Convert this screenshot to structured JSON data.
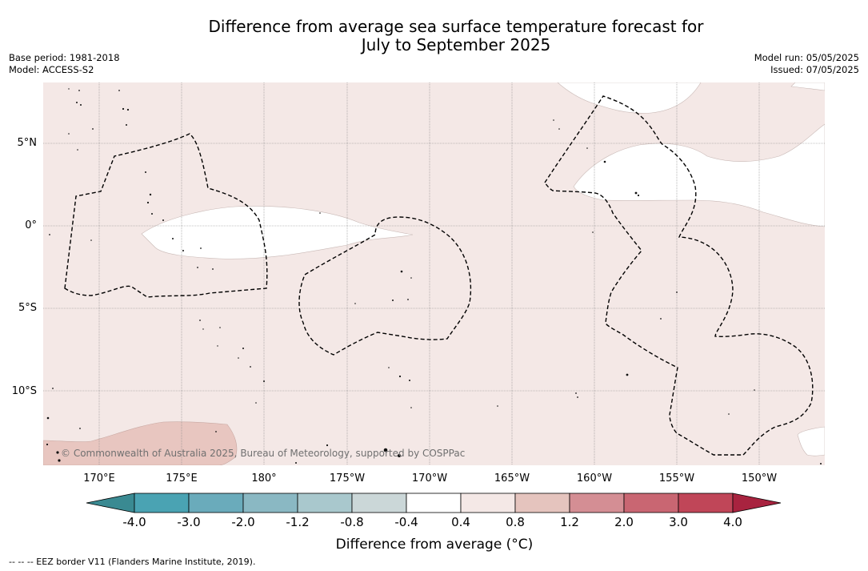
{
  "title_line1": "Difference from average sea surface temperature forecast for",
  "title_line2": "July to September 2025",
  "meta_left": {
    "base_period": "Base period: 1981-2018",
    "model": "Model: ACCESS-S2"
  },
  "meta_right": {
    "model_run": "Model run: 05/05/2025",
    "issued": "Issued: 07/05/2025"
  },
  "map": {
    "lat_labels": [
      "5°N",
      "0°",
      "5°S",
      "10°S"
    ],
    "lon_labels": [
      "170°E",
      "175°E",
      "180°",
      "175°W",
      "170°W",
      "165°W",
      "160°W",
      "155°W",
      "150°W"
    ],
    "background_color": "#f4e8e6",
    "neutral_color": "#ffffff",
    "warm_color": "#e8c6c0",
    "copyright": "© Commonwealth of Australia 2025, Bureau of Meteorology, supported by COSPPac"
  },
  "colorbar": {
    "ticks": [
      "-4.0",
      "-3.0",
      "-2.0",
      "-1.2",
      "-0.8",
      "-0.4",
      "0.4",
      "0.8",
      "1.2",
      "2.0",
      "3.0",
      "4.0"
    ],
    "colors": [
      "#3a8a92",
      "#4aa3b3",
      "#6aabbb",
      "#8ab8c3",
      "#a9c8cd",
      "#cbd7d8",
      "#ffffff",
      "#f4e8e6",
      "#e5c4be",
      "#d48e94",
      "#c96672",
      "#c04658",
      "#a8233f"
    ],
    "label": "Difference from average (°C)"
  },
  "footnote": "--  --  -- EEZ border V11 (Flanders Marine Institute, 2019)."
}
